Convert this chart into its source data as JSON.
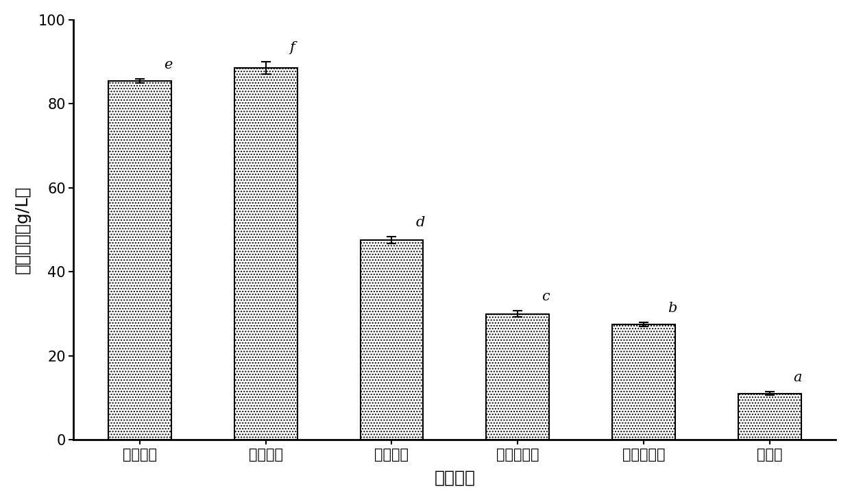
{
  "categories": [
    "初始氮源",
    "酵母浸粉",
    "胰蛋白胨",
    "大豆蛋白胨",
    "牛肉蛋白胨",
    "硫酸铵"
  ],
  "values": [
    85.5,
    88.5,
    47.5,
    30.0,
    27.5,
    11.0
  ],
  "errors": [
    0.5,
    1.5,
    0.8,
    0.8,
    0.5,
    0.4
  ],
  "sig_labels": [
    "e",
    "f",
    "d",
    "c",
    "b",
    "a"
  ],
  "ylabel": "乙醇浓度（g/L）",
  "xlabel": "氮源种类",
  "ylim": [
    0,
    100
  ],
  "yticks": [
    0,
    20,
    40,
    60,
    80,
    100
  ],
  "bar_color": "#ffffff",
  "bar_edgecolor": "#000000",
  "background_color": "#ffffff",
  "sig_fontsize": 15,
  "tick_fontsize": 15,
  "axis_label_fontsize": 18,
  "bar_width": 0.5,
  "hatch": "...."
}
